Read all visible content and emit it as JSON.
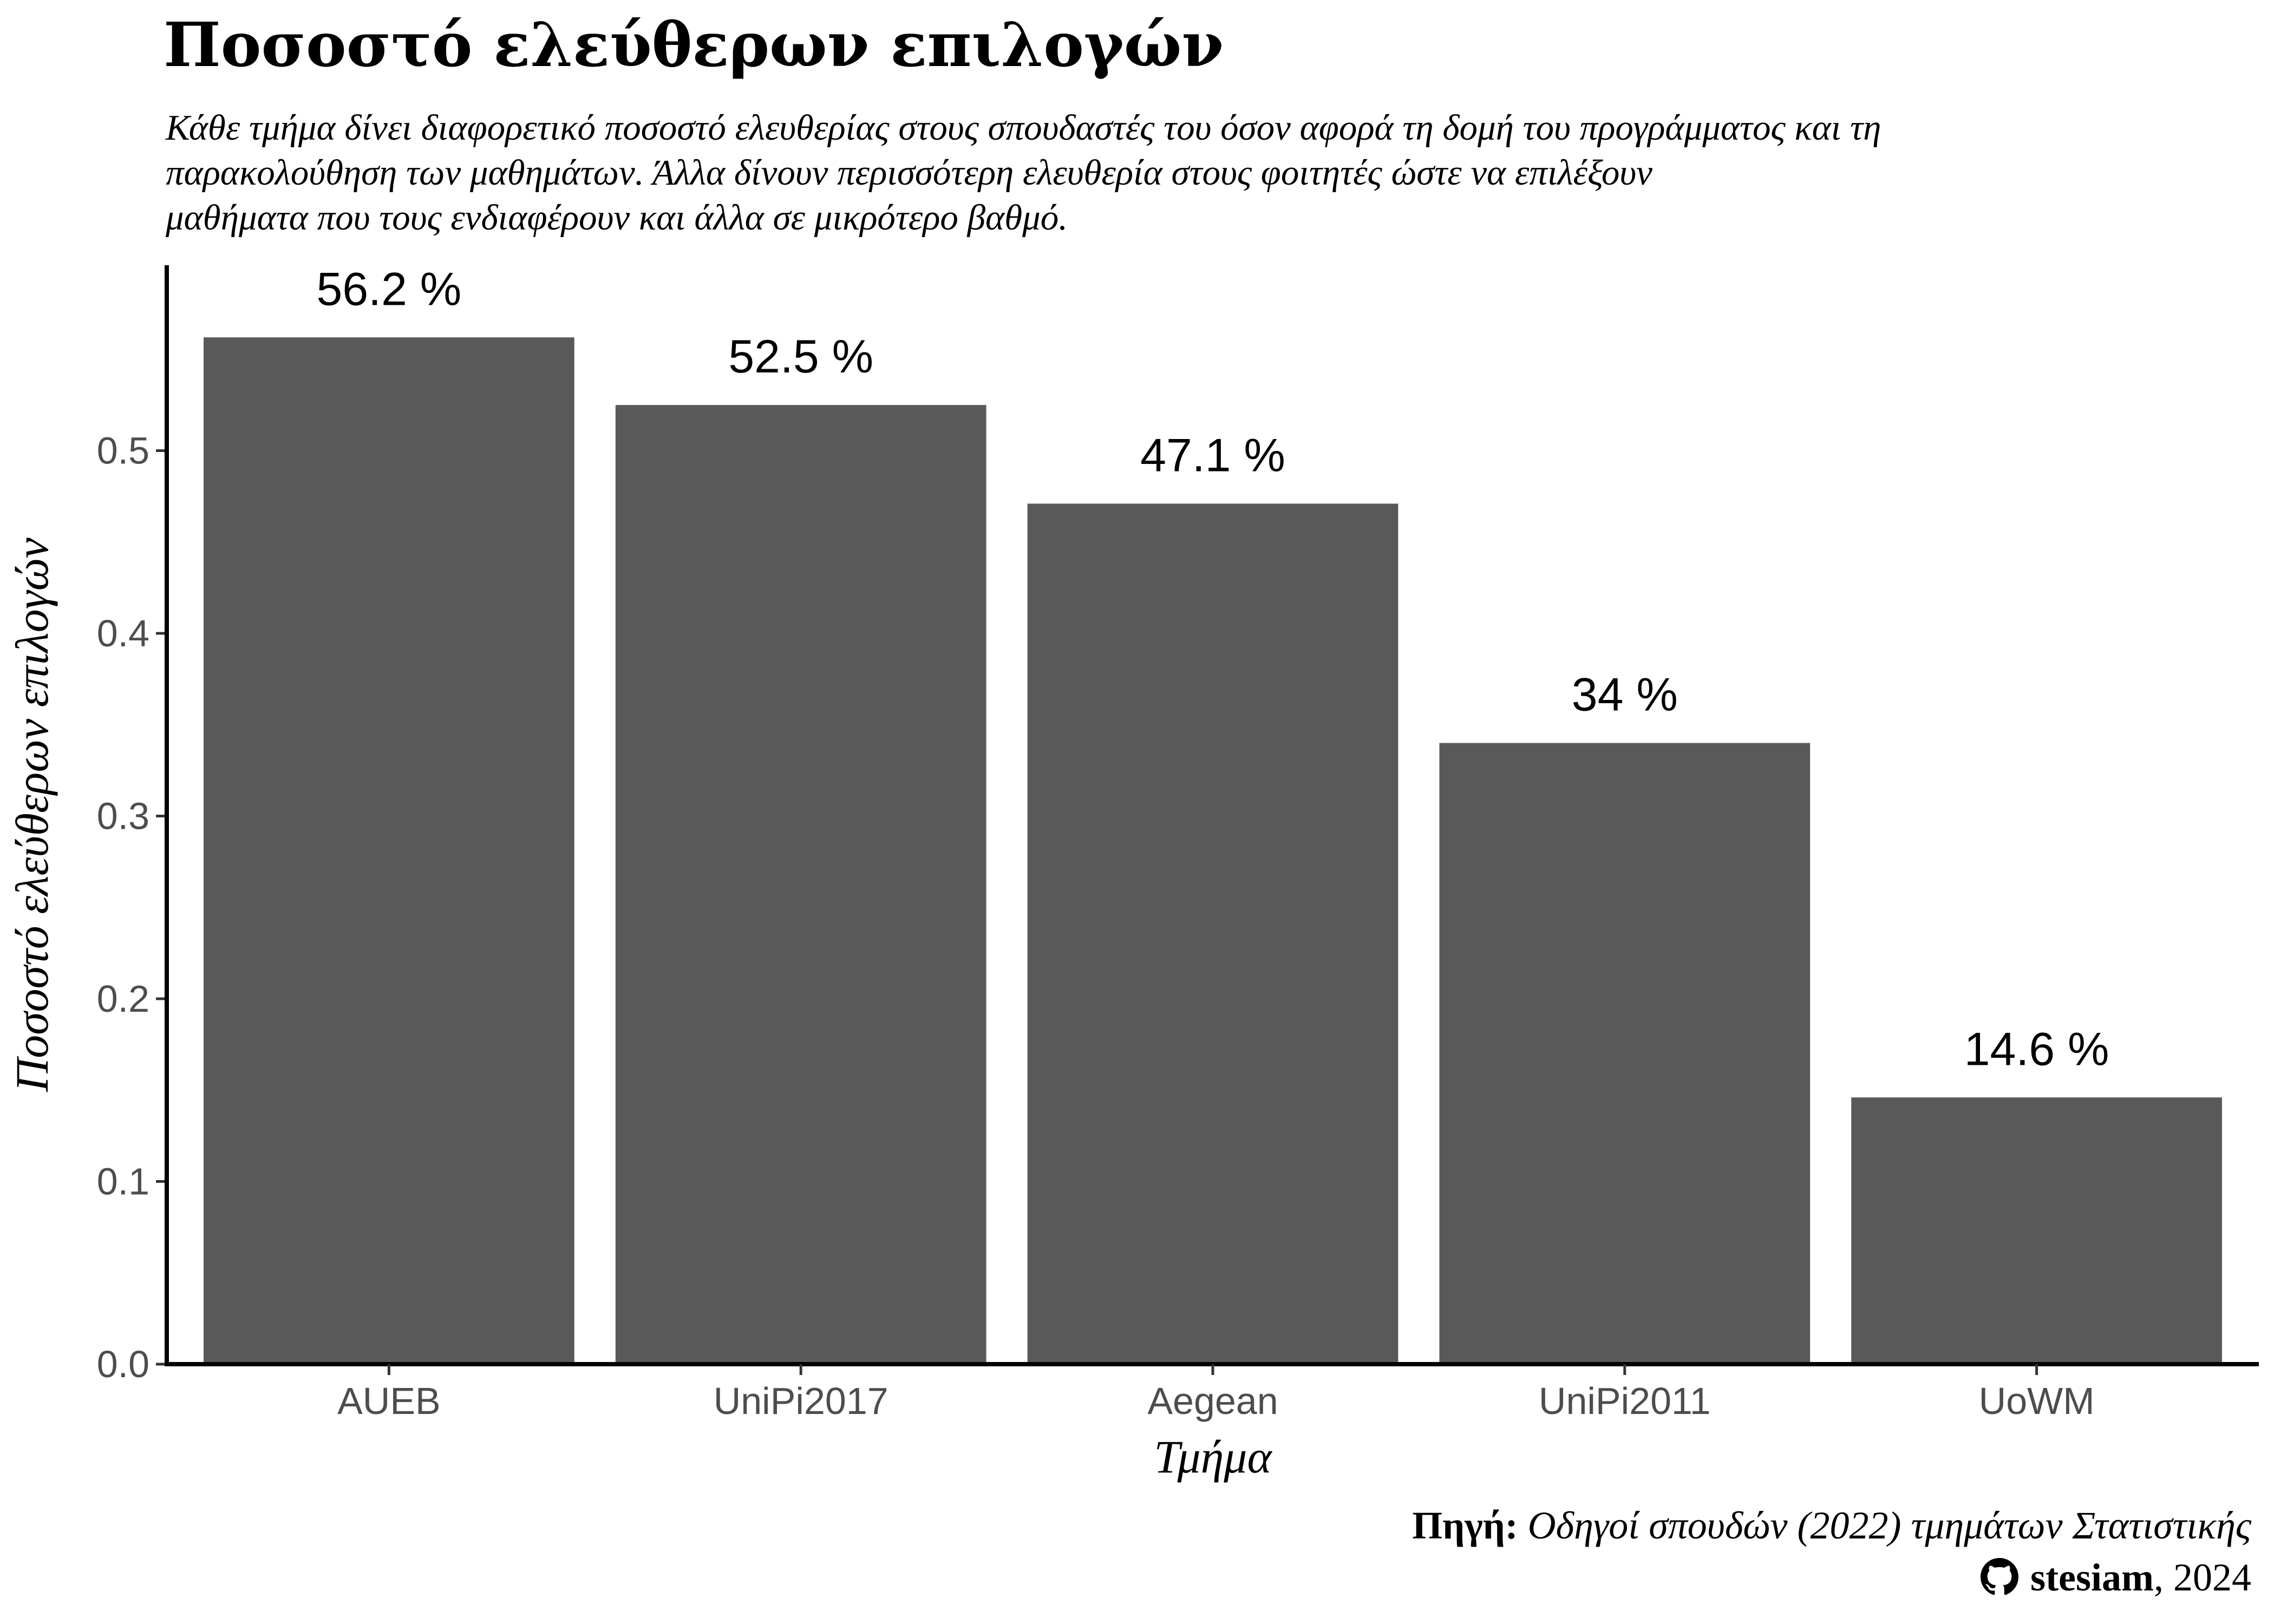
{
  "chart_data": {
    "type": "bar",
    "title": "Ποσοστό ελεύθερων επιλογών",
    "subtitle_lines": [
      "Κάθε τμήμα δίνει διαφορετικό ποσοστό ελευθερίας στους σπουδαστές του όσον αφορά τη δομή του προγράμματος και τη",
      "παρακολούθηση των μαθημάτων. Άλλα δίνουν περισσότερη ελευθερία στους φοιτητές ώστε να επιλέξουν",
      "μαθήματα που τους ενδιαφέρουν και άλλα σε μικρότερο βαθμό."
    ],
    "xlabel": "Τμήμα",
    "ylabel": "Ποσοστό ελεύθερων επιλογών",
    "categories": [
      "AUEB",
      "UniPi2017",
      "Aegean",
      "UniPi2011",
      "UoWM"
    ],
    "values": [
      0.562,
      0.525,
      0.471,
      0.34,
      0.146
    ],
    "data_labels": [
      "56.2 %",
      "52.5 %",
      "47.1 %",
      "34 %",
      "14.6 %"
    ],
    "ylim": [
      0,
      0.6
    ],
    "yticks": [
      0.0,
      0.1,
      0.2,
      0.3,
      0.4,
      0.5
    ],
    "ytick_labels": [
      "0.0",
      "0.1",
      "0.2",
      "0.3",
      "0.4",
      "0.5"
    ],
    "grid": false,
    "bar_color": "#595959"
  },
  "caption": {
    "source_label": "Πηγή:",
    "source_text": "Οδηγοί σπουδών (2022) τμημάτων Στατιστικής",
    "author": "stesiam",
    "year": ", 2024",
    "icon": "github-icon"
  }
}
